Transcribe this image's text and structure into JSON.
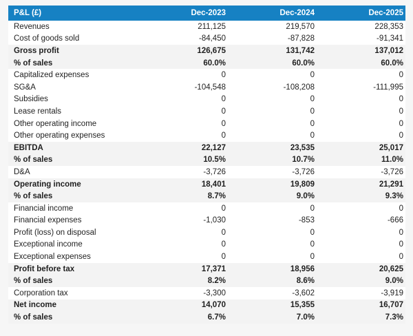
{
  "table": {
    "header": {
      "label": "P&L (£)",
      "columns": [
        "Dec-2023",
        "Dec-2024",
        "Dec-2025"
      ]
    },
    "rows": [
      {
        "label": "Revenues",
        "values": [
          "211,125",
          "219,570",
          "228,353"
        ],
        "style": "normal"
      },
      {
        "label": "Cost of goods sold",
        "values": [
          "-84,450",
          "-87,828",
          "-91,341"
        ],
        "style": "normal"
      },
      {
        "label": "Gross profit",
        "values": [
          "126,675",
          "131,742",
          "137,012"
        ],
        "style": "total"
      },
      {
        "label": "% of sales",
        "values": [
          "60.0%",
          "60.0%",
          "60.0%"
        ],
        "style": "total"
      },
      {
        "label": "Capitalized expenses",
        "values": [
          "0",
          "0",
          "0"
        ],
        "style": "normal"
      },
      {
        "label": "SG&A",
        "values": [
          "-104,548",
          "-108,208",
          "-111,995"
        ],
        "style": "normal"
      },
      {
        "label": "Subsidies",
        "values": [
          "0",
          "0",
          "0"
        ],
        "style": "normal"
      },
      {
        "label": "Lease rentals",
        "values": [
          "0",
          "0",
          "0"
        ],
        "style": "normal"
      },
      {
        "label": "Other operating income",
        "values": [
          "0",
          "0",
          "0"
        ],
        "style": "normal"
      },
      {
        "label": "Other operating expenses",
        "values": [
          "0",
          "0",
          "0"
        ],
        "style": "normal"
      },
      {
        "label": "EBITDA",
        "values": [
          "22,127",
          "23,535",
          "25,017"
        ],
        "style": "total"
      },
      {
        "label": "% of sales",
        "values": [
          "10.5%",
          "10.7%",
          "11.0%"
        ],
        "style": "total"
      },
      {
        "label": "D&A",
        "values": [
          "-3,726",
          "-3,726",
          "-3,726"
        ],
        "style": "normal"
      },
      {
        "label": "Operating income",
        "values": [
          "18,401",
          "19,809",
          "21,291"
        ],
        "style": "total"
      },
      {
        "label": "% of sales",
        "values": [
          "8.7%",
          "9.0%",
          "9.3%"
        ],
        "style": "total"
      },
      {
        "label": "Financial income",
        "values": [
          "0",
          "0",
          "0"
        ],
        "style": "normal"
      },
      {
        "label": "Financial expenses",
        "values": [
          "-1,030",
          "-853",
          "-666"
        ],
        "style": "normal"
      },
      {
        "label": "Profit (loss) on disposal",
        "values": [
          "0",
          "0",
          "0"
        ],
        "style": "normal"
      },
      {
        "label": "Exceptional income",
        "values": [
          "0",
          "0",
          "0"
        ],
        "style": "normal"
      },
      {
        "label": "Exceptional expenses",
        "values": [
          "0",
          "0",
          "0"
        ],
        "style": "normal"
      },
      {
        "label": "Profit before tax",
        "values": [
          "17,371",
          "18,956",
          "20,625"
        ],
        "style": "total"
      },
      {
        "label": "% of sales",
        "values": [
          "8.2%",
          "8.6%",
          "9.0%"
        ],
        "style": "total"
      },
      {
        "label": "Corporation tax",
        "values": [
          "-3,300",
          "-3,602",
          "-3,919"
        ],
        "style": "normal"
      },
      {
        "label": "Net income",
        "values": [
          "14,070",
          "15,355",
          "16,707"
        ],
        "style": "total"
      },
      {
        "label": "% of sales",
        "values": [
          "6.7%",
          "7.0%",
          "7.3%"
        ],
        "style": "total"
      }
    ],
    "colors": {
      "header_bg": "#1681c3",
      "header_text": "#ffffff",
      "band_bg": "#f3f3f3",
      "row_bg": "#ffffff",
      "text": "#1f1f1f",
      "page_bg": "#f6f6f6"
    }
  }
}
